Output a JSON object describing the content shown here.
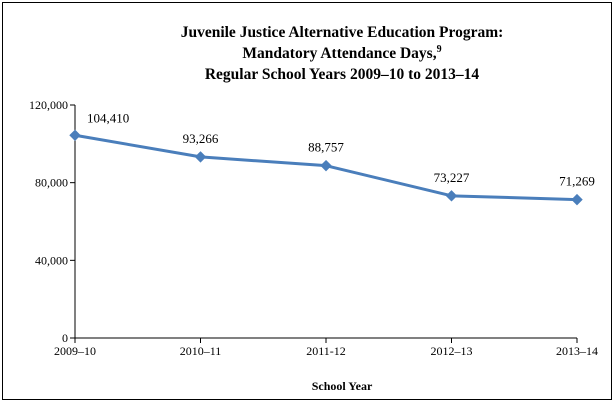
{
  "chart_data": {
    "type": "line",
    "title_lines": [
      "Juvenile Justice Alternative Education Program:",
      "Mandatory Attendance Days,",
      "Regular School Years 2009–10 to 2013–14"
    ],
    "title_superscript": "9",
    "categories": [
      "2009–10",
      "2010–11",
      "2011-12",
      "2012–13",
      "2013–14"
    ],
    "series": [
      {
        "values": [
          104410,
          93266,
          88757,
          73227,
          71269
        ],
        "color": "#4a7ebb"
      }
    ],
    "data_labels": [
      "104,410",
      "93,266",
      "88,757",
      "73,227",
      "71,269"
    ],
    "y_ticks": [
      0,
      40000,
      80000,
      120000
    ],
    "y_tick_labels": [
      "0",
      "40,000",
      "80,000",
      "120,000"
    ],
    "ylim": [
      0,
      120000
    ],
    "xlabel": "School Year",
    "ylabel": "",
    "grid": false,
    "marker": "diamond"
  }
}
